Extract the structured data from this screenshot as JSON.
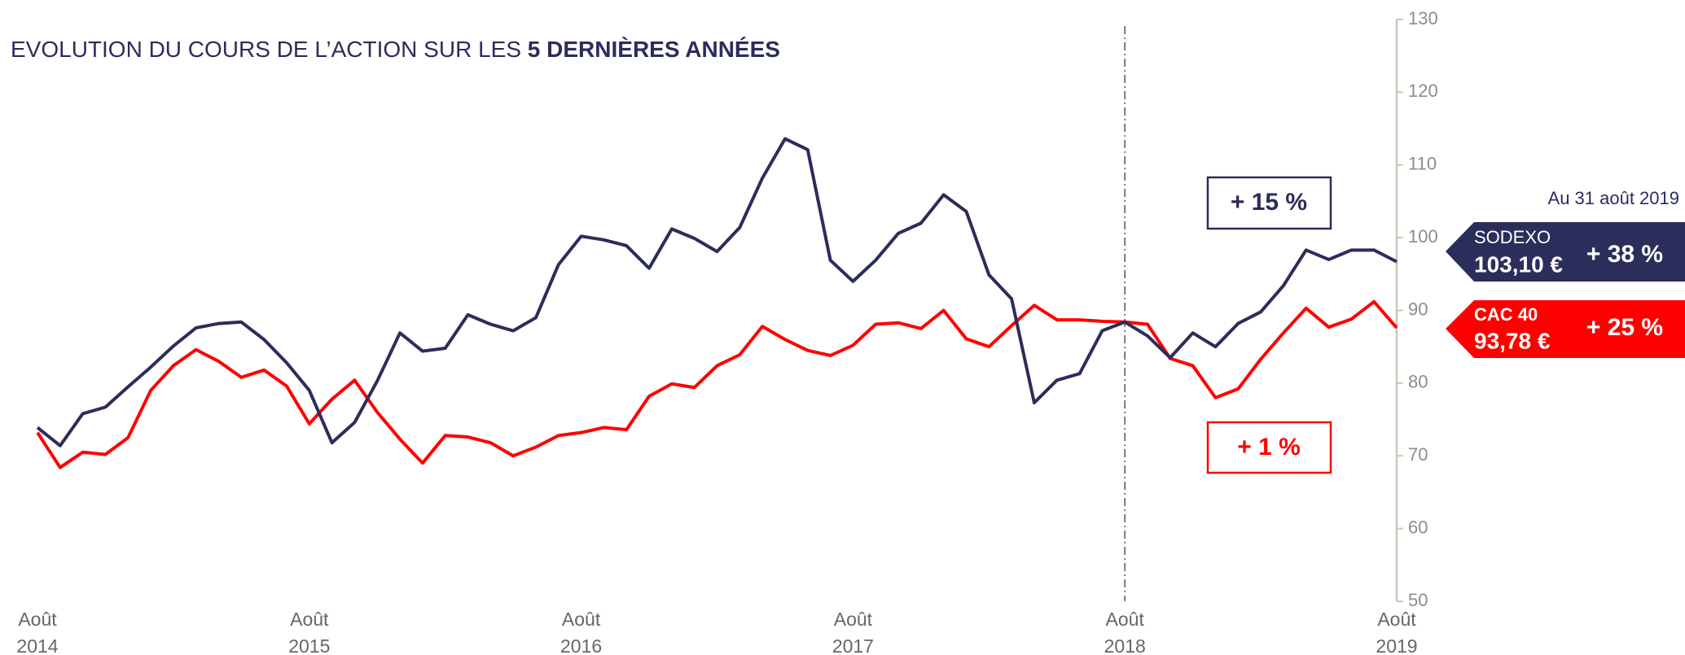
{
  "chart_data": {
    "type": "line",
    "title_parts": [
      "EVOLUTION DU COURS DE L’ACTION SUR LES ",
      "5 DERNIÈRES ANNÉES"
    ],
    "categories": [
      "Août 2014",
      null,
      null,
      null,
      null,
      null,
      null,
      null,
      null,
      null,
      null,
      null,
      "Août 2015",
      null,
      null,
      null,
      null,
      null,
      null,
      null,
      null,
      null,
      null,
      null,
      "Août 2016",
      null,
      null,
      null,
      null,
      null,
      null,
      null,
      null,
      null,
      null,
      null,
      "Août 2017",
      null,
      null,
      null,
      null,
      null,
      null,
      null,
      null,
      null,
      null,
      null,
      "Août 2018",
      null,
      null,
      null,
      null,
      null,
      null,
      null,
      null,
      null,
      null,
      null,
      "Août 2019"
    ],
    "series": [
      {
        "name": "SODEXO",
        "color": "#2b2d5a",
        "values": [
          73.9,
          71.4,
          75.8,
          76.7,
          79.5,
          82.2,
          85.1,
          87.6,
          88.2,
          88.4,
          86,
          82.8,
          79,
          71.8,
          74.6,
          80.3,
          86.9,
          84.4,
          84.8,
          89.4,
          88.1,
          87.2,
          89,
          96.3,
          100.2,
          99.7,
          98.9,
          95.8,
          101.2,
          99.9,
          98.1,
          101.4,
          108.2,
          113.6,
          112.1,
          96.9,
          94,
          96.9,
          100.6,
          102,
          105.9,
          103.6,
          94.9,
          91.6,
          77.3,
          80.4,
          81.3,
          87.2,
          88.4,
          86.5,
          83.5,
          86.9,
          85,
          88.2,
          89.8,
          93.4,
          98.3,
          97,
          98.3,
          98.3,
          96.7
        ]
      },
      {
        "name": "CAC 40",
        "color": "#ff0000",
        "values": [
          73.2,
          68.4,
          70.5,
          70.2,
          72.5,
          79,
          82.4,
          84.6,
          83,
          80.8,
          81.8,
          79.6,
          74.4,
          77.8,
          80.4,
          76,
          72.3,
          69,
          72.8,
          72.6,
          71.8,
          70,
          71.2,
          72.8,
          73.2,
          73.9,
          73.6,
          78.2,
          79.9,
          79.4,
          82.4,
          83.9,
          87.8,
          86,
          84.5,
          83.8,
          85.2,
          88.1,
          88.3,
          87.5,
          90,
          86.1,
          85,
          87.9,
          90.7,
          88.7,
          88.7,
          88.5,
          88.4,
          88.1,
          83.4,
          82.4,
          78,
          79.2,
          83.3,
          86.9,
          90.3,
          87.7,
          88.8,
          91.2,
          87.6
        ]
      }
    ],
    "ylim": [
      50,
      130
    ],
    "yticks": [
      50,
      60,
      70,
      80,
      90,
      100,
      110,
      120,
      130
    ],
    "annotations": {
      "period_sodexo": "+ 15 %",
      "period_cac": "+ 1 %",
      "as_of": "Au 31 août 2019",
      "sodexo_price": "103,10 €",
      "sodexo_change": "+ 38 %",
      "cac_price": "93,78 €",
      "cac_change": "+ 25 %"
    }
  }
}
